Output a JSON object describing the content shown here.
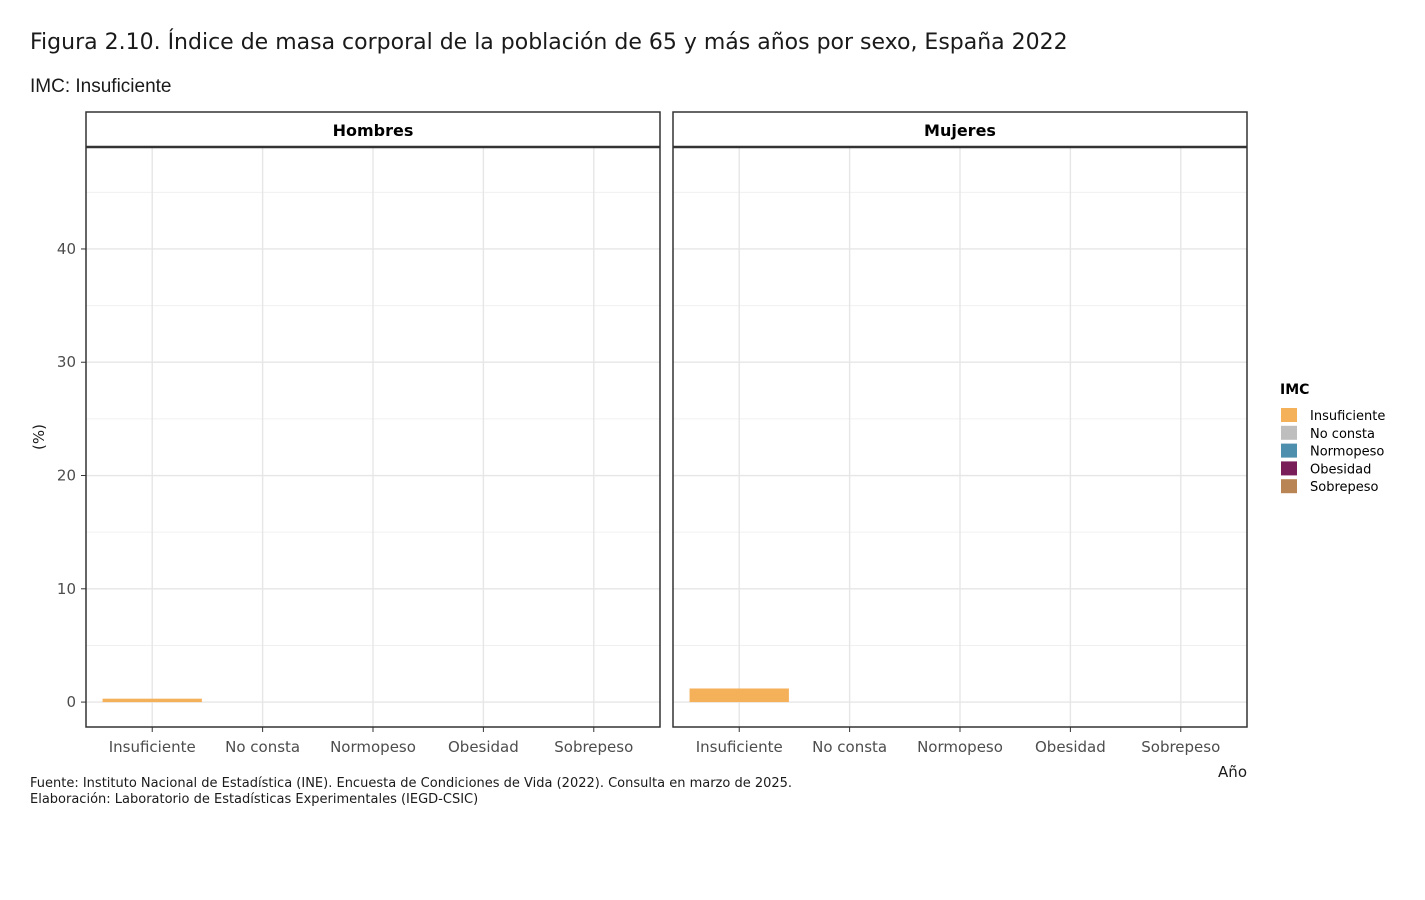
{
  "title": "Figura 2.10. Índice de  masa corporal de la población de 65 y más años por sexo, España 2022",
  "subtitle": "IMC: Insuficiente",
  "caption": {
    "line1": "Fuente: Instituto Nacional de Estadística (INE). Encuesta de Condiciones de Vida (2022). Consulta en marzo de 2025.",
    "line2": "Elaboración: Laboratorio de Estadísticas Experimentales (IEGD-CSIC)"
  },
  "chart_data": {
    "type": "bar",
    "categories": [
      "Insuficiente",
      "No consta",
      "Normopeso",
      "Obesidad",
      "Sobrepeso"
    ],
    "facets": [
      {
        "label": "Hombres",
        "values": [
          0.3,
          0,
          0,
          0,
          0
        ]
      },
      {
        "label": "Mujeres",
        "values": [
          1.2,
          0,
          0,
          0,
          0
        ]
      }
    ],
    "xlabel": "Año",
    "ylabel": "(%)",
    "ylim": [
      -2.2,
      49
    ],
    "yticks": [
      0,
      10,
      20,
      30,
      40
    ],
    "grid": true,
    "legend": {
      "title": "IMC",
      "placement": "right",
      "items": [
        {
          "label": "Insuficiente",
          "color": "#F5B05A"
        },
        {
          "label": "No consta",
          "color": "#BEBEBE"
        },
        {
          "label": "Normopeso",
          "color": "#4D8FAC"
        },
        {
          "label": "Obesidad",
          "color": "#7A1E5A"
        },
        {
          "label": "Sobrepeso",
          "color": "#B98555"
        }
      ]
    }
  }
}
